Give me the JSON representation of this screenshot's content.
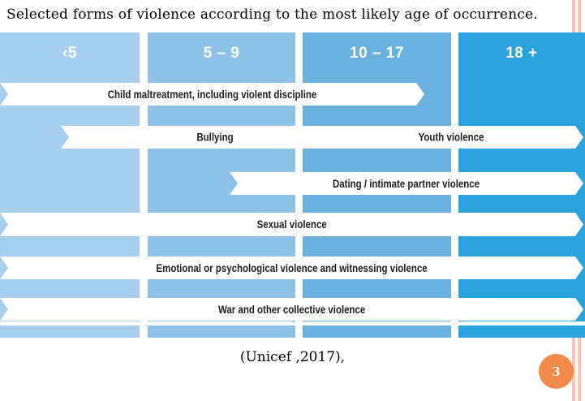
{
  "slide": {
    "title": "Selected forms of violence according to the most likely age of occurrence.",
    "citation": "(Unicef ,2017),",
    "page_number": "3"
  },
  "colors": {
    "col_under5": "#a6cfee",
    "col_5_9": "#8fc2e9",
    "col_10_17": "#6bb1e0",
    "col_18plus": "#2aa3dc",
    "band_background": "#ffffff",
    "band_text": "#1d1d1b",
    "header_text": "#ffffff",
    "page_circle_orange": "#f2894a",
    "border_stripe_salmon": "#f5c8b6"
  },
  "chart_data": {
    "type": "table",
    "title": "Selected forms of violence according to the most likely age of occurrence.",
    "age_groups": [
      "‹5",
      "5 – 9",
      "10 – 17",
      "18 +"
    ],
    "bands": [
      {
        "labels": [
          "Child maltreatment, including violent discipline"
        ],
        "from_age": "<5",
        "to_age": "10-17"
      },
      {
        "labels": [
          "Bullying",
          "Youth violence"
        ],
        "from_age": "5-9",
        "to_age": "18+"
      },
      {
        "labels": [
          "Dating / intimate partner violence"
        ],
        "from_age": "10-17",
        "to_age": "18+"
      },
      {
        "labels": [
          "Sexual violence"
        ],
        "from_age": "<5",
        "to_age": "18+"
      },
      {
        "labels": [
          "Emotional or psychological violence and witnessing violence"
        ],
        "from_age": "<5",
        "to_age": "18+"
      },
      {
        "labels": [
          "War and other collective violence"
        ],
        "from_age": "<5",
        "to_age": "18+"
      }
    ],
    "legend_position": "none",
    "grid": false,
    "source": "(Unicef ,2017),"
  }
}
